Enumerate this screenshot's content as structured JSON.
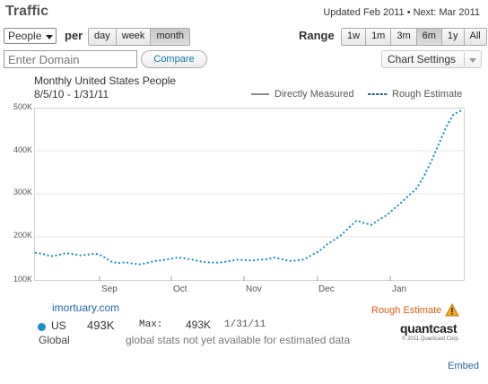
{
  "header": {
    "title": "Traffic",
    "updated": "Updated Feb 2011 • Next: Mar 2011"
  },
  "controls": {
    "metric_select": "People",
    "per_label": "per",
    "period_buttons": [
      "day",
      "week",
      "month"
    ],
    "period_active": "month",
    "range_label": "Range",
    "range_buttons": [
      "1w",
      "1m",
      "3m",
      "6m",
      "1y",
      "All"
    ],
    "range_active": "6m",
    "domain_placeholder": "Enter Domain",
    "compare_label": "Compare",
    "chart_settings_label": "Chart Settings"
  },
  "chart_data": {
    "type": "line",
    "title": "Monthly United States People",
    "subtitle": "8/5/10 - 1/31/11",
    "legend": [
      "Directly Measured",
      "Rough Estimate"
    ],
    "y_ticks": [
      "500K",
      "400K",
      "300K",
      "200K",
      "100K"
    ],
    "x_ticks": [
      "Sep",
      "Oct",
      "Nov",
      "Dec",
      "Jan"
    ],
    "ylim": [
      100000,
      500000
    ],
    "series": [
      {
        "name": "Rough Estimate",
        "style": "dotted",
        "color": "#1a8ec8",
        "values": [
          163000,
          160000,
          155000,
          158000,
          162000,
          160000,
          157000,
          159000,
          161000,
          155000,
          143000,
          139000,
          141000,
          138000,
          136000,
          140000,
          144000,
          146000,
          149000,
          152000,
          150000,
          147000,
          143000,
          141000,
          140000,
          141000,
          144000,
          147000,
          146000,
          145000,
          147000,
          148000,
          152000,
          148000,
          144000,
          145000,
          148000,
          158000,
          167000,
          182000,
          193000,
          205000,
          222000,
          238000,
          232000,
          228000,
          240000,
          250000,
          265000,
          280000,
          296000,
          312000,
          340000,
          375000,
          415000,
          455000,
          485000,
          493000
        ]
      }
    ]
  },
  "stats": {
    "site": "imortuary.com",
    "rough_estimate_label": "Rough Estimate",
    "rows": [
      {
        "label": "US",
        "value": "493K",
        "max_label": "Max:",
        "max_value": "493K",
        "max_date": "1/31/11"
      },
      {
        "label": "Global",
        "note": "global stats not yet available for estimated data"
      }
    ]
  },
  "branding": {
    "logo": "quantcast",
    "copyright": "© 2011 Quantcast Corp."
  },
  "footer": {
    "embed": "Embed"
  },
  "colors": {
    "accent": "#1a8ec8",
    "link": "#2266aa",
    "warning": "#e05a10"
  }
}
